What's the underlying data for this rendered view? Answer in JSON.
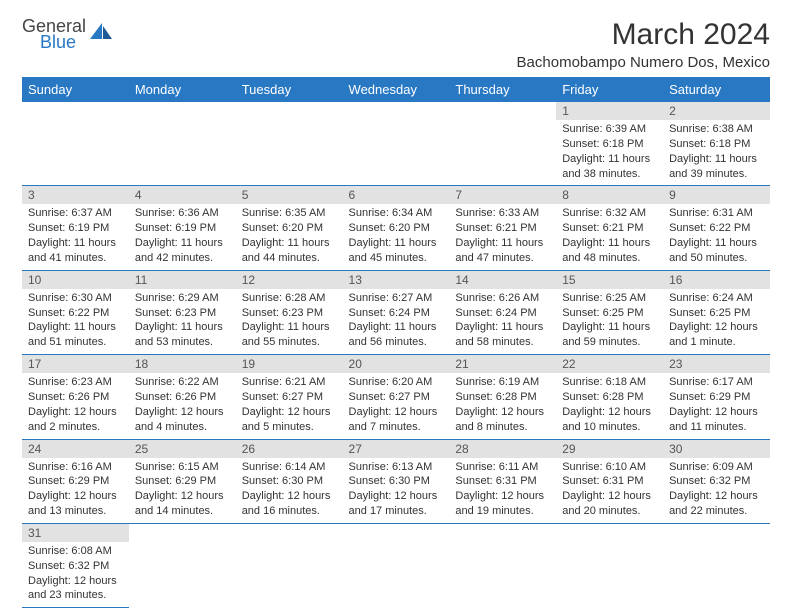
{
  "logo": {
    "line1": "General",
    "line2": "Blue"
  },
  "title": "March 2024",
  "location": "Bachomobampo Numero Dos, Mexico",
  "colors": {
    "header_bg": "#2878c4",
    "header_fg": "#ffffff",
    "daynum_bg": "#e2e2e2",
    "border": "#2878c4"
  },
  "weekdays": [
    "Sunday",
    "Monday",
    "Tuesday",
    "Wednesday",
    "Thursday",
    "Friday",
    "Saturday"
  ],
  "weeks": [
    [
      null,
      null,
      null,
      null,
      null,
      {
        "n": "1",
        "sr": "Sunrise: 6:39 AM",
        "ss": "Sunset: 6:18 PM",
        "dl": "Daylight: 11 hours and 38 minutes."
      },
      {
        "n": "2",
        "sr": "Sunrise: 6:38 AM",
        "ss": "Sunset: 6:18 PM",
        "dl": "Daylight: 11 hours and 39 minutes."
      }
    ],
    [
      {
        "n": "3",
        "sr": "Sunrise: 6:37 AM",
        "ss": "Sunset: 6:19 PM",
        "dl": "Daylight: 11 hours and 41 minutes."
      },
      {
        "n": "4",
        "sr": "Sunrise: 6:36 AM",
        "ss": "Sunset: 6:19 PM",
        "dl": "Daylight: 11 hours and 42 minutes."
      },
      {
        "n": "5",
        "sr": "Sunrise: 6:35 AM",
        "ss": "Sunset: 6:20 PM",
        "dl": "Daylight: 11 hours and 44 minutes."
      },
      {
        "n": "6",
        "sr": "Sunrise: 6:34 AM",
        "ss": "Sunset: 6:20 PM",
        "dl": "Daylight: 11 hours and 45 minutes."
      },
      {
        "n": "7",
        "sr": "Sunrise: 6:33 AM",
        "ss": "Sunset: 6:21 PM",
        "dl": "Daylight: 11 hours and 47 minutes."
      },
      {
        "n": "8",
        "sr": "Sunrise: 6:32 AM",
        "ss": "Sunset: 6:21 PM",
        "dl": "Daylight: 11 hours and 48 minutes."
      },
      {
        "n": "9",
        "sr": "Sunrise: 6:31 AM",
        "ss": "Sunset: 6:22 PM",
        "dl": "Daylight: 11 hours and 50 minutes."
      }
    ],
    [
      {
        "n": "10",
        "sr": "Sunrise: 6:30 AM",
        "ss": "Sunset: 6:22 PM",
        "dl": "Daylight: 11 hours and 51 minutes."
      },
      {
        "n": "11",
        "sr": "Sunrise: 6:29 AM",
        "ss": "Sunset: 6:23 PM",
        "dl": "Daylight: 11 hours and 53 minutes."
      },
      {
        "n": "12",
        "sr": "Sunrise: 6:28 AM",
        "ss": "Sunset: 6:23 PM",
        "dl": "Daylight: 11 hours and 55 minutes."
      },
      {
        "n": "13",
        "sr": "Sunrise: 6:27 AM",
        "ss": "Sunset: 6:24 PM",
        "dl": "Daylight: 11 hours and 56 minutes."
      },
      {
        "n": "14",
        "sr": "Sunrise: 6:26 AM",
        "ss": "Sunset: 6:24 PM",
        "dl": "Daylight: 11 hours and 58 minutes."
      },
      {
        "n": "15",
        "sr": "Sunrise: 6:25 AM",
        "ss": "Sunset: 6:25 PM",
        "dl": "Daylight: 11 hours and 59 minutes."
      },
      {
        "n": "16",
        "sr": "Sunrise: 6:24 AM",
        "ss": "Sunset: 6:25 PM",
        "dl": "Daylight: 12 hours and 1 minute."
      }
    ],
    [
      {
        "n": "17",
        "sr": "Sunrise: 6:23 AM",
        "ss": "Sunset: 6:26 PM",
        "dl": "Daylight: 12 hours and 2 minutes."
      },
      {
        "n": "18",
        "sr": "Sunrise: 6:22 AM",
        "ss": "Sunset: 6:26 PM",
        "dl": "Daylight: 12 hours and 4 minutes."
      },
      {
        "n": "19",
        "sr": "Sunrise: 6:21 AM",
        "ss": "Sunset: 6:27 PM",
        "dl": "Daylight: 12 hours and 5 minutes."
      },
      {
        "n": "20",
        "sr": "Sunrise: 6:20 AM",
        "ss": "Sunset: 6:27 PM",
        "dl": "Daylight: 12 hours and 7 minutes."
      },
      {
        "n": "21",
        "sr": "Sunrise: 6:19 AM",
        "ss": "Sunset: 6:28 PM",
        "dl": "Daylight: 12 hours and 8 minutes."
      },
      {
        "n": "22",
        "sr": "Sunrise: 6:18 AM",
        "ss": "Sunset: 6:28 PM",
        "dl": "Daylight: 12 hours and 10 minutes."
      },
      {
        "n": "23",
        "sr": "Sunrise: 6:17 AM",
        "ss": "Sunset: 6:29 PM",
        "dl": "Daylight: 12 hours and 11 minutes."
      }
    ],
    [
      {
        "n": "24",
        "sr": "Sunrise: 6:16 AM",
        "ss": "Sunset: 6:29 PM",
        "dl": "Daylight: 12 hours and 13 minutes."
      },
      {
        "n": "25",
        "sr": "Sunrise: 6:15 AM",
        "ss": "Sunset: 6:29 PM",
        "dl": "Daylight: 12 hours and 14 minutes."
      },
      {
        "n": "26",
        "sr": "Sunrise: 6:14 AM",
        "ss": "Sunset: 6:30 PM",
        "dl": "Daylight: 12 hours and 16 minutes."
      },
      {
        "n": "27",
        "sr": "Sunrise: 6:13 AM",
        "ss": "Sunset: 6:30 PM",
        "dl": "Daylight: 12 hours and 17 minutes."
      },
      {
        "n": "28",
        "sr": "Sunrise: 6:11 AM",
        "ss": "Sunset: 6:31 PM",
        "dl": "Daylight: 12 hours and 19 minutes."
      },
      {
        "n": "29",
        "sr": "Sunrise: 6:10 AM",
        "ss": "Sunset: 6:31 PM",
        "dl": "Daylight: 12 hours and 20 minutes."
      },
      {
        "n": "30",
        "sr": "Sunrise: 6:09 AM",
        "ss": "Sunset: 6:32 PM",
        "dl": "Daylight: 12 hours and 22 minutes."
      }
    ],
    [
      {
        "n": "31",
        "sr": "Sunrise: 6:08 AM",
        "ss": "Sunset: 6:32 PM",
        "dl": "Daylight: 12 hours and 23 minutes."
      },
      null,
      null,
      null,
      null,
      null,
      null
    ]
  ]
}
